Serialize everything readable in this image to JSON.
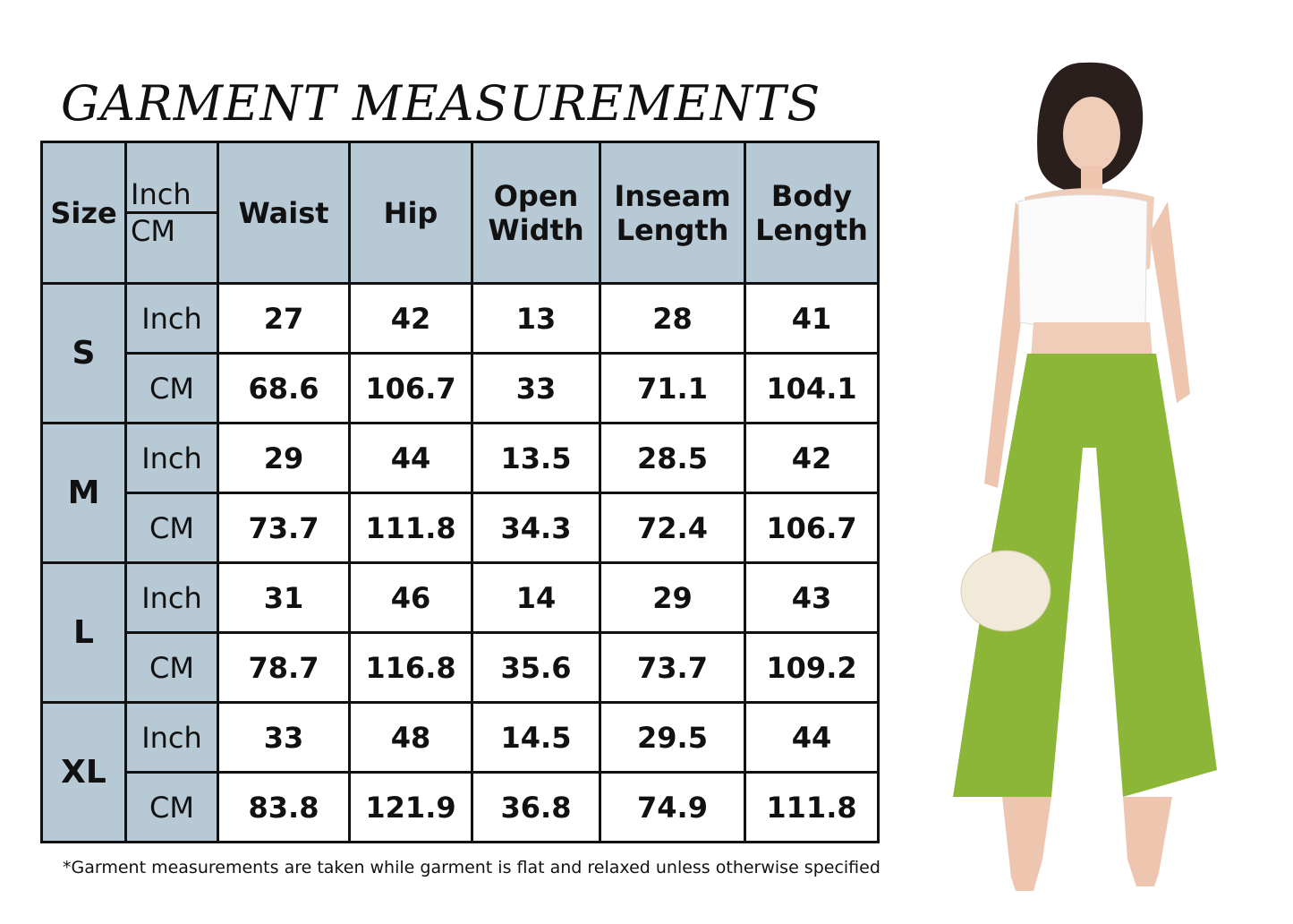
{
  "title": "GARMENT MEASUREMENTS",
  "header": {
    "size": "Size",
    "unit_inch": "Inch",
    "unit_cm": "CM",
    "columns": [
      "Waist",
      "Hip",
      "Open Width",
      "Inseam Length",
      "Body Length"
    ]
  },
  "rows": [
    {
      "size": "S",
      "inch": {
        "unit": "Inch",
        "values": [
          "27",
          "42",
          "13",
          "28",
          "41"
        ]
      },
      "cm": {
        "unit": "CM",
        "values": [
          "68.6",
          "106.7",
          "33",
          "71.1",
          "104.1"
        ]
      }
    },
    {
      "size": "M",
      "inch": {
        "unit": "Inch",
        "values": [
          "29",
          "44",
          "13.5",
          "28.5",
          "42"
        ]
      },
      "cm": {
        "unit": "CM",
        "values": [
          "73.7",
          "111.8",
          "34.3",
          "72.4",
          "106.7"
        ]
      }
    },
    {
      "size": "L",
      "inch": {
        "unit": "Inch",
        "values": [
          "31",
          "46",
          "14",
          "29",
          "43"
        ]
      },
      "cm": {
        "unit": "CM",
        "values": [
          "78.7",
          "116.8",
          "35.6",
          "73.7",
          "109.2"
        ]
      }
    },
    {
      "size": "XL",
      "inch": {
        "unit": "Inch",
        "values": [
          "33",
          "48",
          "14.5",
          "29.5",
          "44"
        ]
      },
      "cm": {
        "unit": "CM",
        "values": [
          "83.8",
          "121.9",
          "36.8",
          "74.9",
          "111.8"
        ]
      }
    }
  ],
  "note": "*Garment measurements are taken while garment is flat and relaxed unless otherwise specified",
  "colors": {
    "header_bg": "#b8c9d6",
    "pants": "#8bb637",
    "top": "#ffffff"
  }
}
